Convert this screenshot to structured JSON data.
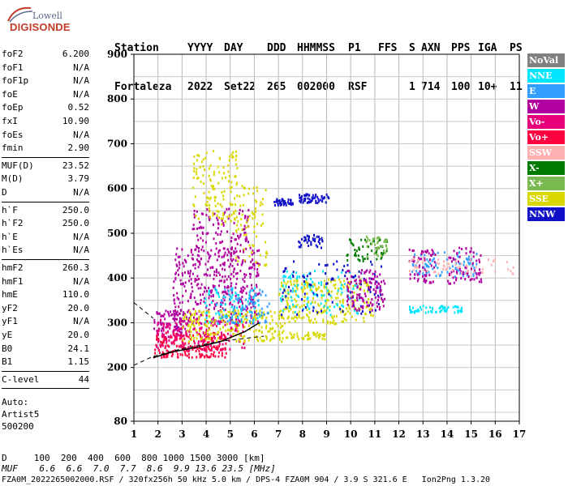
{
  "logo": {
    "line1": "Lowell",
    "line2": "DIGISONDE"
  },
  "header": {
    "row1": [
      "Station",
      "YYYY",
      "DAY",
      "DDD",
      "HHMMSS",
      "P1",
      "FFS",
      "S",
      "AXN",
      "PPS",
      "IGA",
      "PS"
    ],
    "row2": [
      "Fortaleza",
      "2022",
      "Set22",
      "265",
      "002000",
      "RSF",
      "1",
      "714",
      "100",
      "10+",
      "11"
    ]
  },
  "params_group1": [
    {
      "key": "foF2",
      "value": "6.200"
    },
    {
      "key": "foF1",
      "value": "N/A"
    },
    {
      "key": "foF1p",
      "value": "N/A"
    },
    {
      "key": "foE",
      "value": "N/A"
    },
    {
      "key": "foEp",
      "value": "0.52"
    },
    {
      "key": "fxI",
      "value": "10.90"
    },
    {
      "key": "foEs",
      "value": "N/A"
    },
    {
      "key": "fmin",
      "value": "2.90"
    }
  ],
  "params_group2": [
    {
      "key": "MUF(D)",
      "value": "23.52"
    },
    {
      "key": "M(D)",
      "value": "3.79"
    },
    {
      "key": "D",
      "value": "N/A"
    }
  ],
  "params_group3": [
    {
      "key": "h`F",
      "value": "250.0"
    },
    {
      "key": "h`F2",
      "value": "250.0"
    },
    {
      "key": "h`E",
      "value": "N/A"
    },
    {
      "key": "h`Es",
      "value": "N/A"
    }
  ],
  "params_group4": [
    {
      "key": "hmF2",
      "value": "260.3"
    },
    {
      "key": "hmF1",
      "value": "N/A"
    },
    {
      "key": "hmE",
      "value": "110.0"
    },
    {
      "key": "yF2",
      "value": "20.0"
    },
    {
      "key": "yF1",
      "value": "N/A"
    },
    {
      "key": "yE",
      "value": "20.0"
    },
    {
      "key": "B0",
      "value": "24.1"
    },
    {
      "key": "B1",
      "value": "1.15"
    }
  ],
  "params_group5": [
    {
      "key": "C-level",
      "value": "44"
    }
  ],
  "auto_block": [
    "Auto:",
    "Artist5",
    "500200"
  ],
  "legend": [
    {
      "label": "NoVal",
      "color": "#808080"
    },
    {
      "label": "NNE",
      "color": "#00e5ff"
    },
    {
      "label": "E",
      "color": "#33a0ff"
    },
    {
      "label": "W",
      "color": "#b000a0"
    },
    {
      "label": "Vo-",
      "color": "#e8007a"
    },
    {
      "label": "Vo+",
      "color": "#ff0040"
    },
    {
      "label": "SSW",
      "color": "#ffb0b0"
    },
    {
      "label": "X-",
      "color": "#007a00"
    },
    {
      "label": "X+",
      "color": "#7ab850"
    },
    {
      "label": "SSE",
      "color": "#d8d800"
    },
    {
      "label": "NNW",
      "color": "#1010c8"
    }
  ],
  "bottom": {
    "d_line": "D     100  200  400  600  800 1000 1500 3000 [km]",
    "muf_line": "MUF    6.6  6.6  7.0  7.7  8.6  9.9 13.6 23.5 [MHz]",
    "footer": "FZA0M_2022265002000.RSF / 320fx256h 50 kHz 5.0 km / DPS-4 FZA0M 904 / 3.9 S 321.6 E   Ion2Png 1.3.20"
  },
  "chart_data": {
    "type": "scatter",
    "title": "",
    "xlabel": "",
    "ylabel": "",
    "xlim": [
      1,
      17
    ],
    "ylim": [
      80,
      900
    ],
    "x_ticks": [
      1,
      2,
      3,
      4,
      5,
      6,
      7,
      8,
      9,
      10,
      11,
      12,
      13,
      14,
      15,
      16,
      17
    ],
    "y_ticks": [
      80,
      200,
      300,
      400,
      500,
      600,
      700,
      800,
      900
    ],
    "grid": true,
    "legend_position": "right",
    "clusters": [
      {
        "series": "W",
        "x": [
          1.8,
          3.2
        ],
        "y": [
          270,
          330
        ],
        "n": 90
      },
      {
        "series": "W",
        "x": [
          2.6,
          6.2
        ],
        "y": [
          300,
          470
        ],
        "n": 420
      },
      {
        "series": "W",
        "x": [
          3.4,
          5.8
        ],
        "y": [
          460,
          560
        ],
        "n": 110
      },
      {
        "series": "Vo+",
        "x": [
          1.8,
          4.8
        ],
        "y": [
          225,
          280
        ],
        "n": 220
      },
      {
        "series": "Vo-",
        "x": [
          1.9,
          5.6
        ],
        "y": [
          240,
          310
        ],
        "n": 160
      },
      {
        "series": "SSE",
        "x": [
          3.0,
          7.2
        ],
        "y": [
          260,
          330
        ],
        "n": 230
      },
      {
        "series": "SSE",
        "x": [
          3.4,
          5.3
        ],
        "y": [
          520,
          690
        ],
        "n": 130
      },
      {
        "series": "SSE",
        "x": [
          5.2,
          6.5
        ],
        "y": [
          430,
          610
        ],
        "n": 70
      },
      {
        "series": "SSE",
        "x": [
          7.0,
          10.9
        ],
        "y": [
          300,
          400
        ],
        "n": 260
      },
      {
        "series": "SSE",
        "x": [
          7.3,
          8.9
        ],
        "y": [
          265,
          280
        ],
        "n": 40
      },
      {
        "series": "NNE",
        "x": [
          3.8,
          6.2
        ],
        "y": [
          300,
          380
        ],
        "n": 80
      },
      {
        "series": "NNE",
        "x": [
          7.0,
          10.5
        ],
        "y": [
          320,
          420
        ],
        "n": 110
      },
      {
        "series": "NNE",
        "x": [
          12.4,
          14.6
        ],
        "y": [
          325,
          340
        ],
        "n": 60
      },
      {
        "series": "E",
        "x": [
          4.6,
          6.6
        ],
        "y": [
          300,
          380
        ],
        "n": 70
      },
      {
        "series": "E",
        "x": [
          12.5,
          15.2
        ],
        "y": [
          405,
          460
        ],
        "n": 90
      },
      {
        "series": "NNW",
        "x": [
          6.8,
          7.6
        ],
        "y": [
          565,
          580
        ],
        "n": 40
      },
      {
        "series": "NNW",
        "x": [
          7.8,
          9.1
        ],
        "y": [
          570,
          590
        ],
        "n": 60
      },
      {
        "series": "NNW",
        "x": [
          7.8,
          8.8
        ],
        "y": [
          470,
          500
        ],
        "n": 40
      },
      {
        "series": "NNW",
        "x": [
          7.0,
          11.4
        ],
        "y": [
          320,
          440
        ],
        "n": 90
      },
      {
        "series": "X-",
        "x": [
          9.8,
          11.5
        ],
        "y": [
          440,
          490
        ],
        "n": 50
      },
      {
        "series": "X+",
        "x": [
          10.6,
          11.5
        ],
        "y": [
          450,
          495
        ],
        "n": 40
      },
      {
        "series": "W",
        "x": [
          9.8,
          11.4
        ],
        "y": [
          330,
          420
        ],
        "n": 120
      },
      {
        "series": "W",
        "x": [
          12.4,
          13.5
        ],
        "y": [
          390,
          470
        ],
        "n": 60
      },
      {
        "series": "W",
        "x": [
          14.0,
          15.4
        ],
        "y": [
          390,
          470
        ],
        "n": 70
      },
      {
        "series": "SSW",
        "x": [
          12.4,
          16.8
        ],
        "y": [
          410,
          445
        ],
        "n": 60
      }
    ],
    "traces": [
      {
        "name": "fit-lower",
        "style": "dashed",
        "x": [
          1.0,
          1.8,
          3.0,
          4.5,
          6.4
        ],
        "y": [
          205,
          225,
          242,
          258,
          270
        ]
      },
      {
        "name": "fit-upper",
        "style": "dashed",
        "x": [
          1.0,
          1.8
        ],
        "y": [
          345,
          310
        ]
      },
      {
        "name": "profile",
        "style": "solid",
        "x": [
          1.8,
          2.6,
          3.6,
          4.6,
          5.6,
          6.2
        ],
        "y": [
          222,
          235,
          245,
          258,
          280,
          300
        ]
      }
    ]
  }
}
